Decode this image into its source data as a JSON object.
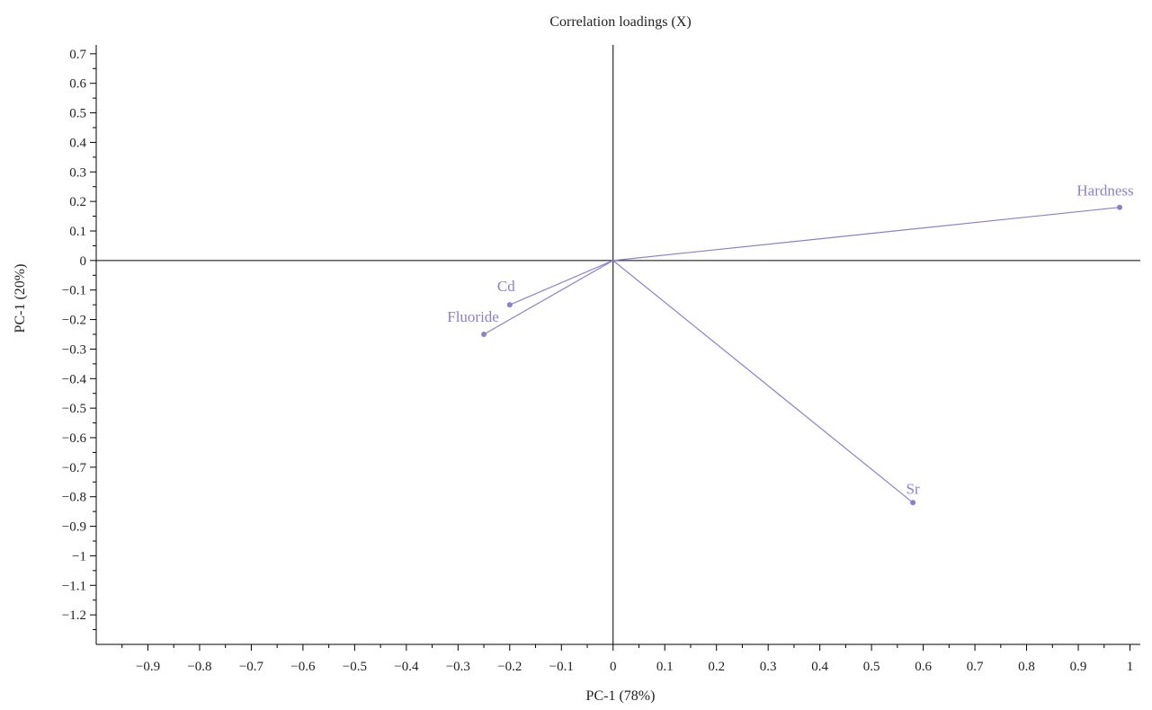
{
  "chart_data": {
    "type": "scatter",
    "title": "Correlation loadings (X)",
    "xlabel": "PC-1 (78%)",
    "ylabel": "PC-1 (20%)",
    "xlim": [
      -1.0,
      1.02
    ],
    "ylim": [
      -1.3,
      0.73
    ],
    "x_ticks": [
      -0.9,
      -0.8,
      -0.7,
      -0.6,
      -0.5,
      -0.4,
      -0.3,
      -0.2,
      -0.1,
      0,
      0.1,
      0.2,
      0.3,
      0.4,
      0.5,
      0.6,
      0.7,
      0.8,
      0.9,
      1
    ],
    "x_tick_labels": [
      "−0.9",
      "−0.8",
      "−0.7",
      "−0.6",
      "−0.5",
      "−0.4",
      "−0.3",
      "−0.2",
      "−0.1",
      "0",
      "0.1",
      "0.2",
      "0.3",
      "0.4",
      "0.5",
      "0.6",
      "0.7",
      "0.8",
      "0.9",
      "1"
    ],
    "y_ticks": [
      0.7,
      0.6,
      0.5,
      0.4,
      0.3,
      0.2,
      0.1,
      0,
      -0.1,
      -0.2,
      -0.3,
      -0.4,
      -0.5,
      -0.6,
      -0.7,
      -0.8,
      -0.9,
      -1,
      -1.1,
      -1.2
    ],
    "y_tick_labels": [
      "0.7",
      "0.6",
      "0.5",
      "0.4",
      "0.3",
      "0.2",
      "0.1",
      "0",
      "−0.1",
      "−0.2",
      "−0.3",
      "−0.4",
      "−0.5",
      "−0.6",
      "−0.7",
      "−0.8",
      "−0.9",
      "−1",
      "−1.1",
      "−1.2"
    ],
    "points": [
      {
        "label": "Hardness",
        "x": 0.98,
        "y": 0.18
      },
      {
        "label": "Cd",
        "x": -0.2,
        "y": -0.15
      },
      {
        "label": "Fluoride",
        "x": -0.25,
        "y": -0.25
      },
      {
        "label": "Sr",
        "x": 0.58,
        "y": -0.82
      }
    ],
    "point_color": "#8a80cc",
    "axis_color": "#000000",
    "grid": false,
    "legend": "none"
  }
}
